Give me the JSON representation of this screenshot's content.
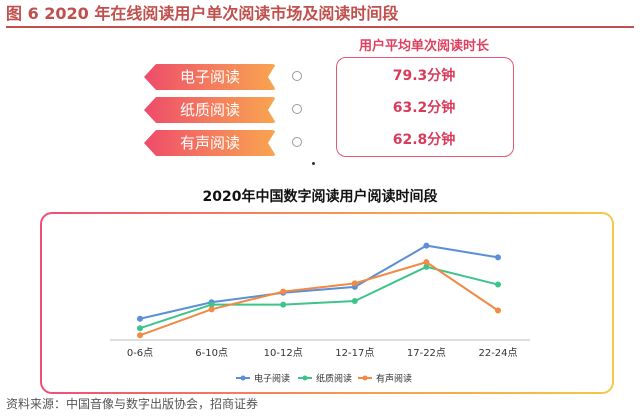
{
  "figure_title": "图 6 2020 年在线阅读用户单次阅读市场及阅读时间段",
  "summary": {
    "title": "用户平均单次阅读时长",
    "items": [
      {
        "label": "电子阅读",
        "value": "79.3分钟"
      },
      {
        "label": "纸质阅读",
        "value": "63.2分钟"
      },
      {
        "label": "有声阅读",
        "value": "62.8分钟"
      }
    ]
  },
  "colors": {
    "ebook": "#5b8fd6",
    "paper": "#3cc48a",
    "audio": "#f08a45",
    "accent": "#c0504d"
  },
  "chart_data": {
    "type": "line",
    "title": "2020年中国数字阅读用户阅读时间段",
    "categories": [
      "0-6点",
      "6-10点",
      "10-12点",
      "12-17点",
      "17-22点",
      "22-24点"
    ],
    "ylim": [
      0,
      100
    ],
    "grid": false,
    "legend_position": "bottom-center",
    "series": [
      {
        "name": "电子阅读",
        "values": [
          18,
          32,
          40,
          45,
          80,
          70
        ]
      },
      {
        "name": "纸质阅读",
        "values": [
          10,
          30,
          30,
          33,
          62,
          47
        ]
      },
      {
        "name": "有声阅读",
        "values": [
          4,
          26,
          41,
          48,
          66,
          25
        ]
      }
    ]
  },
  "source": "资料来源：中国音像与数字出版协会，招商证券"
}
